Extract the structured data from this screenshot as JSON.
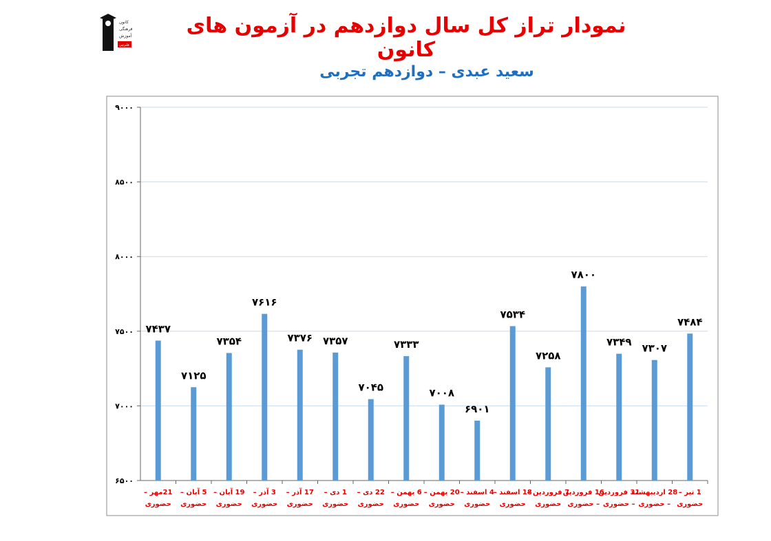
{
  "header": {
    "title": "نمودار تراز کل سال دوازدهم در آزمون های کانون",
    "subtitle": "سعید عبدی – دوازدهم تجربی",
    "logo_lines": [
      "کانون",
      "فرهنگی",
      "آموزش",
      "قلم‌چی"
    ]
  },
  "colors": {
    "bar": "#5b9bd5",
    "title": "#e60000",
    "subtitle": "#1f6fc0",
    "xtick": "#e60000"
  },
  "chart_data": {
    "type": "bar",
    "categories": [
      "21مهر – حضوری",
      "5 آبان – حضوری",
      "19 آبان – حضوری",
      "3 آذر – حضوری",
      "17 آذر – حضوری",
      "1 دی – حضوری",
      "22 دی – حضوری",
      "6 بهمن – حضوری",
      "20 بهمن – حضوری",
      "4 اسفند – حضوری",
      "18 اسفند – حضوری",
      "7 فروردین – حضوری",
      "16 فروردین – حضوری",
      "31 فروردین – حضوری",
      "28 اردیبهشت – حضوری",
      "1 تیر – حضوری"
    ],
    "category_lines": [
      [
        "21مهر –",
        "حضوری"
      ],
      [
        "5 آبان –",
        "حضوری"
      ],
      [
        "19 آبان –",
        "حضوری"
      ],
      [
        "3 آذر –",
        "حضوری"
      ],
      [
        "17 آذر –",
        "حضوری"
      ],
      [
        "1 دی –",
        "حضوری"
      ],
      [
        "22 دی –",
        "حضوری"
      ],
      [
        "6 بهمن –",
        "حضوری"
      ],
      [
        "20 بهمن –",
        "حضوری"
      ],
      [
        "4 اسفند –",
        "حضوری"
      ],
      [
        "18 اسفند –",
        "حضوری"
      ],
      [
        "7 فروردین –",
        "حضوری"
      ],
      [
        "16 فروردین",
        "– حضوری"
      ],
      [
        "31 فروردین",
        "– حضوری"
      ],
      [
        "28 اردیبهشت",
        "– حضوری"
      ],
      [
        "1 تیر –",
        "حضوری"
      ]
    ],
    "values": [
      7437,
      7125,
      7354,
      7616,
      7376,
      7357,
      7045,
      7333,
      7008,
      6901,
      7534,
      7258,
      7800,
      7349,
      7307,
      7484
    ],
    "data_labels": [
      "۷۴۳۷",
      "۷۱۲۵",
      "۷۳۵۴",
      "۷۶۱۶",
      "۷۳۷۶",
      "۷۳۵۷",
      "۷۰۴۵",
      "۷۳۳۳",
      "۷۰۰۸",
      "۶۹۰۱",
      "۷۵۳۴",
      "۷۲۵۸",
      "۷۸۰۰",
      "۷۳۴۹",
      "۷۳۰۷",
      "۷۴۸۴"
    ],
    "ylim": [
      6500,
      9000
    ],
    "yticks": [
      6500,
      7000,
      7500,
      8000,
      8500,
      9000
    ],
    "ytick_labels": [
      "۶۵۰۰",
      "۷۰۰۰",
      "۷۵۰۰",
      "۸۰۰۰",
      "۸۵۰۰",
      "۹۰۰۰"
    ],
    "grid": true,
    "title": "",
    "xlabel": "",
    "ylabel": ""
  }
}
